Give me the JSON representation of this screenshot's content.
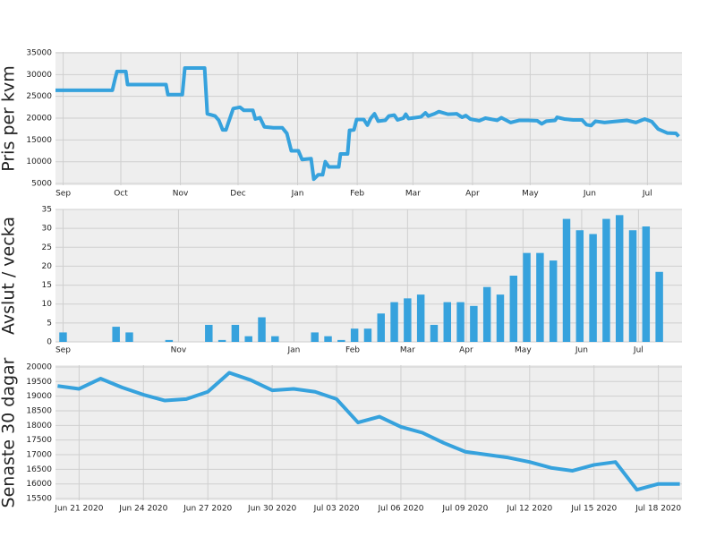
{
  "chart_data": [
    {
      "type": "line",
      "ylabel": "Pris per kvm",
      "color": "#36a2dd",
      "grid": true,
      "x": [
        -4,
        25.6,
        27,
        28,
        32.6,
        33.5,
        53.5,
        54.5,
        62,
        63.3,
        73.6,
        75,
        79,
        81,
        83,
        84.7,
        86,
        88.5,
        92,
        94,
        98.7,
        100,
        102.4,
        104.7,
        109.4,
        114,
        116.4,
        118.7,
        122.4,
        124.3,
        129,
        130.4,
        132.7,
        135,
        136.4,
        138.3,
        143.4,
        144.3,
        148,
        149,
        151.3,
        152.7,
        156.4,
        158.3,
        160.1,
        162,
        163.9,
        167.6,
        169.5,
        172.3,
        174,
        177,
        178.3,
        179.7,
        186.2,
        188.5,
        190,
        193.2,
        195.5,
        200.2,
        204.8,
        207.6,
        209.5,
        211.8,
        216.5,
        219.7,
        225.8,
        228,
        232.8,
        237.4,
        242,
        246.7,
        249,
        251.4,
        256,
        257,
        260.7,
        265.4,
        270,
        272.3,
        274.7,
        277,
        281.7,
        286.3,
        293.3,
        298,
        302.6,
        306.3,
        309.6,
        314.3,
        318.9,
        320.3
      ],
      "values": [
        26400,
        26400,
        29000,
        30700,
        30700,
        27700,
        27700,
        25400,
        25400,
        31500,
        31500,
        21000,
        20500,
        19500,
        17300,
        17300,
        19000,
        22200,
        22500,
        21800,
        21800,
        19800,
        20100,
        18000,
        17800,
        17800,
        16500,
        12500,
        12500,
        10500,
        10700,
        6000,
        7000,
        7000,
        10000,
        8800,
        8800,
        11800,
        11800,
        17200,
        17300,
        19700,
        19700,
        18400,
        20000,
        21000,
        19300,
        19500,
        20500,
        20700,
        19600,
        20000,
        20900,
        19900,
        20300,
        21200,
        20500,
        21000,
        21500,
        20900,
        21000,
        20200,
        20600,
        19800,
        19400,
        20000,
        19500,
        20100,
        19000,
        19500,
        19500,
        19400,
        18700,
        19300,
        19500,
        20200,
        19800,
        19600,
        19600,
        18500,
        18300,
        19300,
        19000,
        19200,
        19500,
        19000,
        19800,
        19200,
        17500,
        16600,
        16500,
        15800
      ],
      "xlim": [
        -4,
        322
      ],
      "ylim": [
        4600,
        35200
      ],
      "xticks": [
        {
          "value": 0,
          "label": "Sep"
        },
        {
          "value": 30,
          "label": "Oct"
        },
        {
          "value": 61,
          "label": "Nov"
        },
        {
          "value": 91,
          "label": "Dec"
        },
        {
          "value": 122,
          "label": "Jan"
        },
        {
          "value": 153,
          "label": "Feb"
        },
        {
          "value": 182,
          "label": "Mar"
        },
        {
          "value": 213,
          "label": "Apr"
        },
        {
          "value": 243,
          "label": "May"
        },
        {
          "value": 274,
          "label": "Jun"
        },
        {
          "value": 304,
          "label": "Jul"
        }
      ],
      "yticks": [
        5000,
        10000,
        15000,
        20000,
        25000,
        30000,
        35000
      ]
    },
    {
      "type": "bar",
      "ylabel": "Avslut / vecka",
      "color": "#36a2dd",
      "grid": true,
      "x": [
        0,
        28,
        35,
        56,
        77,
        84,
        91,
        98,
        105,
        112,
        133,
        140,
        147,
        154,
        161,
        168,
        175,
        182,
        189,
        196,
        203,
        210,
        217,
        224,
        231,
        238,
        245,
        252,
        259,
        266,
        273,
        280,
        287,
        294,
        301,
        308,
        315
      ],
      "values": [
        2.5,
        4,
        2.5,
        0.5,
        4.5,
        0.5,
        4.5,
        1.5,
        6.5,
        1.5,
        2.5,
        1.5,
        0.5,
        3.5,
        3.5,
        7.5,
        10.5,
        11.5,
        12.5,
        4.5,
        10.5,
        10.5,
        9.5,
        14.5,
        12.5,
        17.5,
        23.5,
        23.5,
        21.5,
        32.5,
        29.5,
        28.5,
        32.5,
        33.5,
        29.5,
        30.5,
        18.5
      ],
      "xlim": [
        -4,
        327
      ],
      "ylim": [
        0,
        35
      ],
      "xticks": [
        {
          "value": 0,
          "label": "Sep"
        },
        {
          "value": 61,
          "label": "Nov"
        },
        {
          "value": 122,
          "label": "Jan"
        },
        {
          "value": 153,
          "label": "Feb"
        },
        {
          "value": 182,
          "label": "Mar"
        },
        {
          "value": 213,
          "label": "Apr"
        },
        {
          "value": 243,
          "label": "May"
        },
        {
          "value": 274,
          "label": "Jun"
        },
        {
          "value": 304,
          "label": "Jul"
        }
      ],
      "yticks": [
        0,
        5,
        10,
        15,
        20,
        25,
        30,
        35
      ]
    },
    {
      "type": "line",
      "ylabel": "Senaste 30 dagar",
      "color": "#36a2dd",
      "grid": true,
      "x": [
        -1,
        0,
        1,
        2,
        3,
        4,
        5,
        6,
        7,
        8,
        9,
        10,
        11,
        12,
        13,
        14,
        15,
        16,
        17,
        18,
        19,
        20,
        21,
        22,
        23,
        24,
        25,
        26,
        27,
        28
      ],
      "values": [
        19350,
        19250,
        19600,
        19300,
        19050,
        18850,
        18900,
        19150,
        19800,
        19550,
        19200,
        19250,
        19150,
        18900,
        18100,
        18300,
        17950,
        17750,
        17400,
        17100,
        17000,
        16900,
        16750,
        16550,
        16450,
        16650,
        16750,
        15800,
        16000,
        16000
      ],
      "xlim": [
        -1.1,
        28.1
      ],
      "ylim": [
        15440,
        20060
      ],
      "xticks": [
        {
          "value": 0,
          "label": "Jun 21 2020"
        },
        {
          "value": 3,
          "label": "Jun 24 2020"
        },
        {
          "value": 6,
          "label": "Jun 27 2020"
        },
        {
          "value": 9,
          "label": "Jun 30 2020"
        },
        {
          "value": 12,
          "label": "Jul 03 2020"
        },
        {
          "value": 15,
          "label": "Jul 06 2020"
        },
        {
          "value": 18,
          "label": "Jul 09 2020"
        },
        {
          "value": 21,
          "label": "Jul 12 2020"
        },
        {
          "value": 24,
          "label": "Jul 15 2020"
        },
        {
          "value": 27,
          "label": "Jul 18 2020"
        }
      ],
      "yticks": [
        15500,
        16000,
        16500,
        17000,
        17500,
        18000,
        18500,
        19000,
        19500,
        20000
      ]
    }
  ]
}
